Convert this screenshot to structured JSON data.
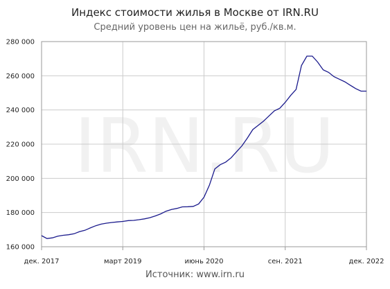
{
  "title": "Индекс стоимости жилья в Москве от IRN.RU",
  "subtitle": "Средний уровень цен на жильё, руб./кв.м.",
  "source": "Источник: www.irn.ru",
  "watermark": "IRN.RU",
  "colors": {
    "line": "#1a1a8c",
    "grid": "#cccccc",
    "axis": "#999999"
  },
  "chart_data": {
    "type": "line",
    "title": "Индекс стоимости жилья в Москве от IRN.RU",
    "subtitle": "Средний уровень цен на жильё, руб./кв.м.",
    "xlabel": "",
    "ylabel": "",
    "ylim": [
      160000,
      280000
    ],
    "yticks": [
      160000,
      180000,
      200000,
      220000,
      240000,
      260000,
      280000
    ],
    "ytick_labels": [
      "160 000",
      "180 000",
      "200 000",
      "220 000",
      "240 000",
      "260 000",
      "280 000"
    ],
    "xlim": [
      "2017-12",
      "2022-12"
    ],
    "xticks": [
      "2017-12",
      "2019-03",
      "2020-06",
      "2021-09",
      "2022-12"
    ],
    "xtick_labels": [
      "дек. 2017",
      "март 2019",
      "июнь 2020",
      "сен. 2021",
      "дек. 2022"
    ],
    "grid": true,
    "legend": "none",
    "series": [
      {
        "x": [
          "2017-12",
          "2018-01",
          "2018-02",
          "2018-03",
          "2018-04",
          "2018-05",
          "2018-06",
          "2018-07",
          "2018-08",
          "2018-09",
          "2018-10",
          "2018-11",
          "2018-12",
          "2019-01",
          "2019-02",
          "2019-03",
          "2019-04",
          "2019-05",
          "2019-06",
          "2019-07",
          "2019-08",
          "2019-09",
          "2019-10",
          "2019-11",
          "2019-12",
          "2020-01",
          "2020-02",
          "2020-03",
          "2020-04",
          "2020-05",
          "2020-06",
          "2020-07",
          "2020-08",
          "2020-09",
          "2020-10",
          "2020-11",
          "2020-12",
          "2021-01",
          "2021-02",
          "2021-03",
          "2021-04",
          "2021-05",
          "2021-06",
          "2021-07",
          "2021-08",
          "2021-09",
          "2021-10",
          "2021-11",
          "2021-12",
          "2022-01",
          "2022-02",
          "2022-03",
          "2022-04",
          "2022-05",
          "2022-06",
          "2022-07",
          "2022-08",
          "2022-09",
          "2022-10",
          "2022-11",
          "2022-12"
        ],
        "values": [
          166500,
          164800,
          165200,
          166200,
          166700,
          167000,
          167600,
          168800,
          169600,
          171000,
          172300,
          173200,
          173800,
          174200,
          174500,
          174800,
          175300,
          175400,
          175800,
          176300,
          177000,
          178000,
          179200,
          180800,
          181800,
          182400,
          183300,
          183400,
          183600,
          185000,
          189000,
          196000,
          205500,
          208000,
          209500,
          212000,
          215500,
          219000,
          223500,
          228500,
          231000,
          233500,
          236500,
          239500,
          241000,
          244500,
          248500,
          252000,
          266000,
          271500,
          271500,
          268000,
          263500,
          262000,
          259500,
          258000,
          256500,
          254500,
          252500,
          251000,
          251000
        ]
      }
    ]
  }
}
